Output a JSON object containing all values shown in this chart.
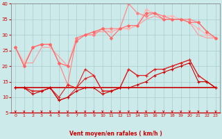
{
  "x": [
    0,
    1,
    2,
    3,
    4,
    5,
    6,
    7,
    8,
    9,
    10,
    11,
    12,
    13,
    14,
    15,
    16,
    17,
    18,
    19,
    20,
    21,
    22,
    23
  ],
  "series": [
    {
      "color": "#FF9999",
      "linewidth": 0.8,
      "marker": null,
      "values": [
        26,
        21,
        21,
        26,
        26,
        23,
        20,
        29,
        30,
        31,
        31,
        31,
        32,
        32,
        33,
        35,
        36,
        35,
        35,
        35,
        34,
        30,
        29,
        29
      ]
    },
    {
      "color": "#FFB3B3",
      "linewidth": 0.8,
      "marker": "D",
      "markersize": 2.0,
      "values": [
        26,
        21,
        26,
        27,
        27,
        21,
        20,
        29,
        30,
        30,
        32,
        31,
        32,
        32,
        33,
        38,
        37,
        36,
        36,
        35,
        34,
        32,
        30,
        29
      ]
    },
    {
      "color": "#FF8080",
      "linewidth": 0.8,
      "marker": "D",
      "markersize": 2.0,
      "values": [
        26,
        20,
        26,
        27,
        27,
        21,
        14,
        29,
        30,
        30,
        32,
        32,
        32,
        40,
        37,
        36,
        37,
        36,
        35,
        35,
        35,
        34,
        31,
        29
      ]
    },
    {
      "color": "#FF6666",
      "linewidth": 0.8,
      "marker": "D",
      "markersize": 2.0,
      "values": [
        26,
        20,
        26,
        27,
        27,
        21,
        20,
        28,
        30,
        31,
        32,
        29,
        32,
        33,
        33,
        37,
        37,
        35,
        35,
        35,
        34,
        34,
        31,
        29
      ]
    },
    {
      "color": "#CC0000",
      "linewidth": 1.2,
      "marker": null,
      "values": [
        13,
        13,
        13,
        13,
        13,
        13,
        13,
        13,
        13,
        13,
        13,
        13,
        13,
        13,
        13,
        13,
        13,
        13,
        13,
        13,
        13,
        13,
        13,
        13
      ]
    },
    {
      "color": "#DD2222",
      "linewidth": 0.8,
      "marker": "+",
      "markersize": 3.5,
      "values": [
        13,
        13,
        12,
        12,
        13,
        10,
        14,
        13,
        19,
        17,
        12,
        12,
        13,
        19,
        17,
        17,
        19,
        19,
        20,
        21,
        22,
        17,
        15,
        13
      ]
    },
    {
      "color": "#DD2222",
      "linewidth": 0.8,
      "marker": "+",
      "markersize": 3.5,
      "values": [
        13,
        13,
        12,
        12,
        13,
        9,
        10,
        13,
        16,
        17,
        12,
        12,
        13,
        19,
        17,
        17,
        19,
        19,
        20,
        21,
        22,
        17,
        15,
        13
      ]
    },
    {
      "color": "#CC0000",
      "linewidth": 0.8,
      "marker": "+",
      "markersize": 3.5,
      "values": [
        13,
        13,
        11,
        12,
        13,
        9,
        10,
        12,
        13,
        13,
        11,
        12,
        13,
        13,
        14,
        15,
        17,
        18,
        19,
        20,
        21,
        15,
        15,
        13
      ]
    }
  ],
  "xlabel": "Vent moyen/en rafales ( km/h )",
  "ylim": [
    5,
    40
  ],
  "xlim": [
    -0.5,
    23.5
  ],
  "yticks": [
    5,
    10,
    15,
    20,
    25,
    30,
    35,
    40
  ],
  "xticks": [
    0,
    1,
    2,
    3,
    4,
    5,
    6,
    7,
    8,
    9,
    10,
    11,
    12,
    13,
    14,
    15,
    16,
    17,
    18,
    19,
    20,
    21,
    22,
    23
  ],
  "background_color": "#CCEAEA",
  "grid_color": "#AACCCC",
  "spine_color": "#888888",
  "xlabel_color": "#CC0000",
  "tick_label_color": "#CC0000",
  "arrow_color": "#CC0000"
}
